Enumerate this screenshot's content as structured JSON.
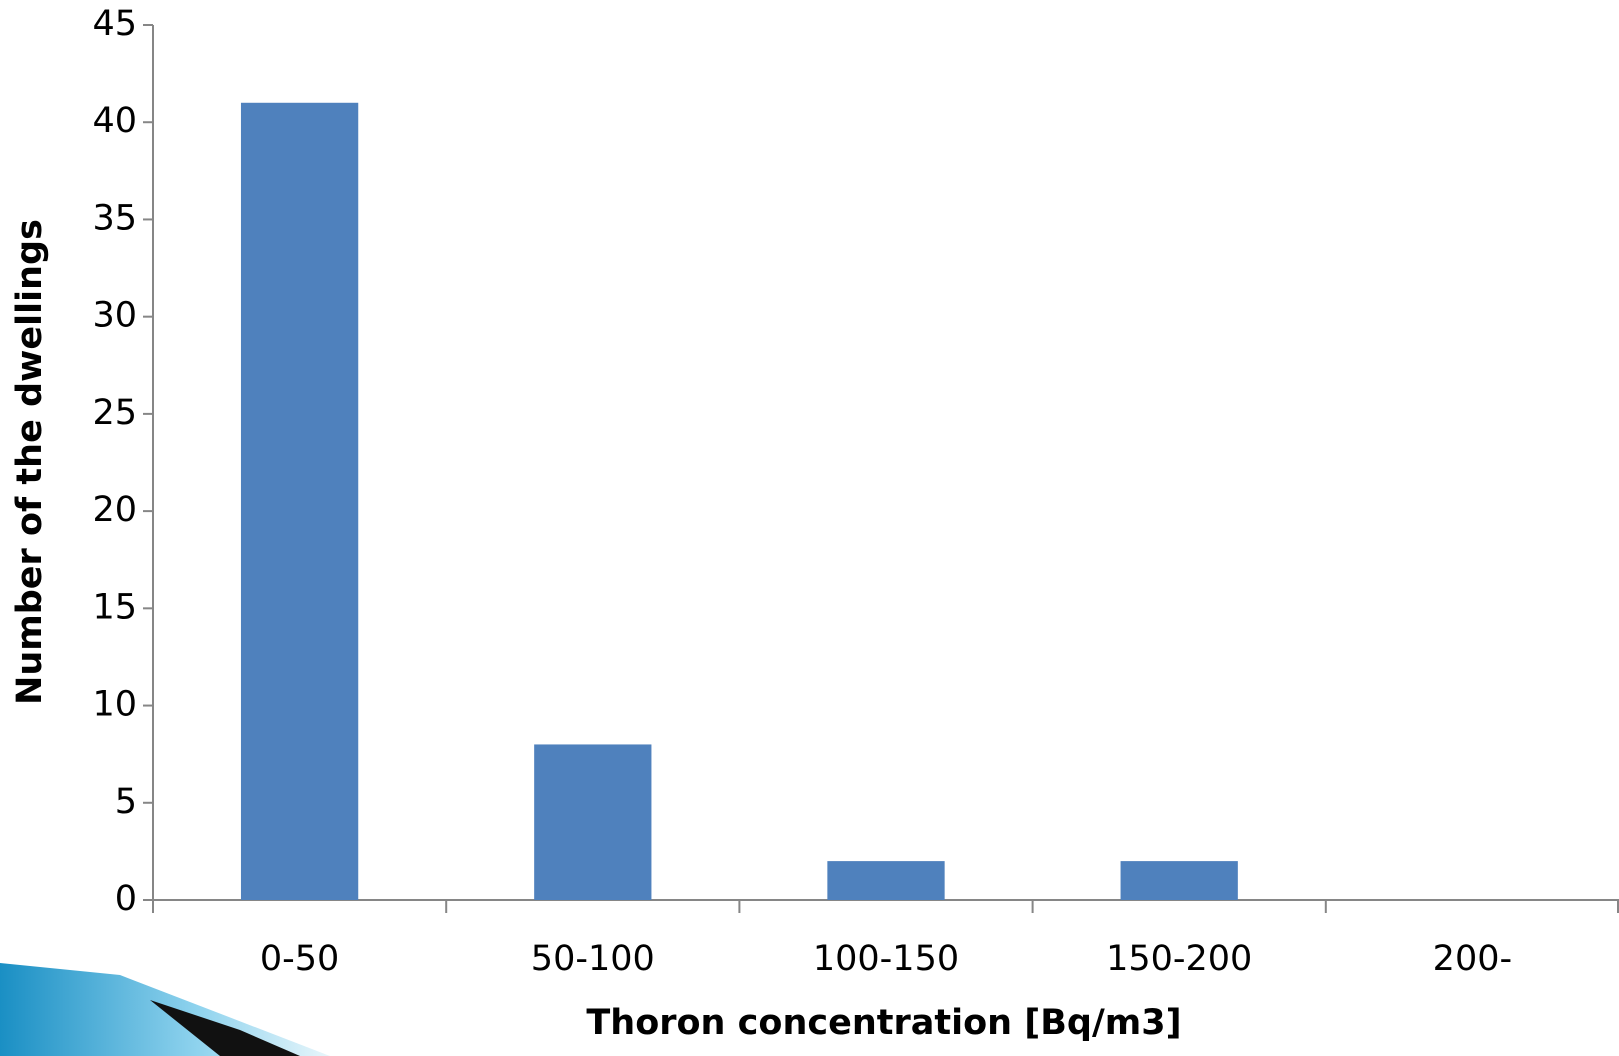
{
  "chart_data": {
    "type": "bar",
    "x_label": "Thoron concentration [Bq/m3]",
    "y_label": "Number of the dwellings",
    "categories": [
      "0-50",
      "50-100",
      "100-150",
      "150-200",
      "200-"
    ],
    "values": [
      41,
      8,
      2,
      2,
      0
    ],
    "color": "#4f81bd",
    "ylim": [
      0,
      45
    ],
    "yticks": [
      0,
      5,
      10,
      15,
      20,
      25,
      30,
      35,
      40,
      45
    ],
    "grid": false
  }
}
